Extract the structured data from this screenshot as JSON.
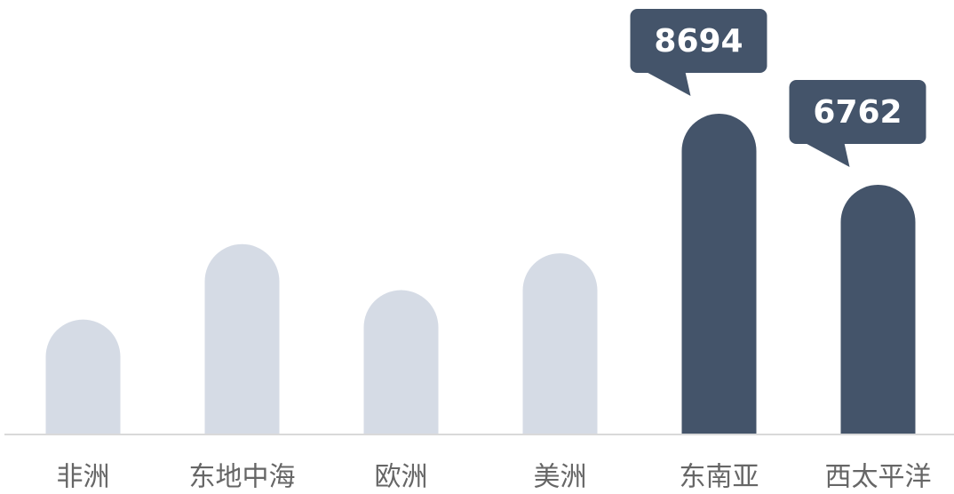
{
  "chart_data": {
    "type": "bar",
    "categories": [
      "非洲",
      "东地中海",
      "欧洲",
      "美洲",
      "东南亚",
      "西太平洋"
    ],
    "values": [
      3100,
      5150,
      3900,
      4900,
      8694,
      6762
    ],
    "colors": [
      "#d5dbe5",
      "#d5dbe5",
      "#d5dbe5",
      "#d5dbe5",
      "#44546a",
      "#44546a"
    ],
    "labels_shown": [
      false,
      false,
      false,
      false,
      true,
      true
    ],
    "label_color": "#44546a"
  }
}
